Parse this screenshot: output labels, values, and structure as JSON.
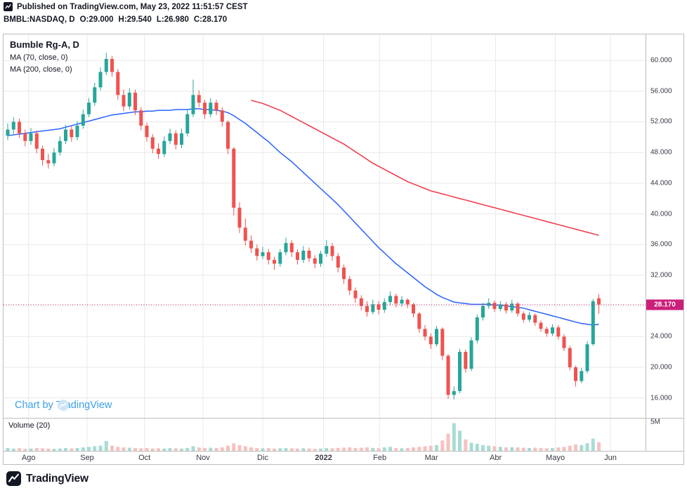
{
  "publish_bar": {
    "text": "Published on TradingView.com, May 23, 2022 11:51:57 CEST"
  },
  "symbol_bar": {
    "symbol": "BMBL:NASDAQ, D",
    "open": "O:29.000",
    "high": "H:29.540",
    "low": "L:26.980",
    "close": "C:28.170"
  },
  "legend": {
    "series_title": "Bumble Rg-A, D",
    "ma_fast_label": "MA (70, close, 0)",
    "ma_slow_label": "MA (200, close, 0)"
  },
  "watermark_text": "Chart by TradingView",
  "volume_panel_label": "Volume (20)",
  "volume_axis_label": "5M",
  "last_price_label": "28.170",
  "footer_brand": "TradingView",
  "colors": {
    "up": "#26a69a",
    "down": "#ef5350",
    "ma_fast": "#2962ff",
    "ma_slow": "#f23645",
    "price_line": "#cc1f7a",
    "volume_up": "#a8dcd4",
    "volume_down": "#f6c2c1",
    "grid": "#e8e8e8",
    "axis_text": "#363a45",
    "frame": "#bdbdbd",
    "watermark_blue": "#3aa0e8"
  },
  "chart_data": {
    "type": "candlestick",
    "title": "Bumble Rg-A, D (BMBL:NASDAQ)",
    "interval": "D",
    "header_ohlc": {
      "o": 29.0,
      "h": 29.54,
      "l": 26.98,
      "c": 28.17
    },
    "last_price": 28.17,
    "ylim": [
      13.4,
      63.4
    ],
    "price_ticks": [
      {
        "value": 60,
        "label": "60.000"
      },
      {
        "value": 56,
        "label": "56.000"
      },
      {
        "value": 52,
        "label": "52.000"
      },
      {
        "value": 48,
        "label": "48.000"
      },
      {
        "value": 44,
        "label": "44.000"
      },
      {
        "value": 40,
        "label": "40.000"
      },
      {
        "value": 36,
        "label": "36.000"
      },
      {
        "value": 32,
        "label": "32.000"
      },
      {
        "value": 28,
        "label": "28.000"
      },
      {
        "value": 24,
        "label": "24.000"
      },
      {
        "value": 20,
        "label": "20.000"
      },
      {
        "value": 16,
        "label": "16.000"
      }
    ],
    "month_ticks": [
      {
        "label": "Ago",
        "i": 3.6
      },
      {
        "label": "Sep",
        "i": 13.7
      },
      {
        "label": "Oct",
        "i": 23.6
      },
      {
        "label": "Nov",
        "i": 33.7
      },
      {
        "label": "Dic",
        "i": 44.0
      },
      {
        "label": "2022",
        "i": 54.5,
        "bold": true
      },
      {
        "label": "Feb",
        "i": 64.2
      },
      {
        "label": "Mar",
        "i": 73.1
      },
      {
        "label": "Abr",
        "i": 84.2
      },
      {
        "label": "Mayo",
        "i": 94.5
      },
      {
        "label": "Jun",
        "i": 104
      }
    ],
    "candles": [
      [
        50.2,
        51.8,
        49.6,
        51.0
      ],
      [
        51.0,
        52.6,
        50.4,
        52.0
      ],
      [
        52.0,
        52.4,
        49.9,
        50.5
      ],
      [
        50.5,
        51.0,
        48.8,
        49.5
      ],
      [
        49.5,
        51.2,
        49.0,
        50.5
      ],
      [
        50.5,
        50.9,
        47.9,
        48.5
      ],
      [
        48.5,
        48.9,
        46.3,
        47.0
      ],
      [
        47.0,
        47.8,
        45.9,
        46.6
      ],
      [
        46.6,
        48.6,
        46.2,
        48.0
      ],
      [
        48.0,
        50.1,
        47.6,
        49.5
      ],
      [
        49.5,
        51.6,
        49.1,
        51.0
      ],
      [
        51.0,
        51.5,
        49.4,
        50.0
      ],
      [
        50.0,
        52.1,
        49.6,
        51.5
      ],
      [
        51.5,
        53.6,
        51.1,
        53.0
      ],
      [
        53.0,
        55.1,
        52.6,
        54.5
      ],
      [
        54.5,
        57.1,
        54.1,
        56.5
      ],
      [
        56.5,
        59.1,
        56.1,
        58.5
      ],
      [
        58.5,
        61.0,
        58.1,
        60.2
      ],
      [
        60.2,
        60.6,
        57.9,
        58.5
      ],
      [
        58.5,
        58.9,
        54.9,
        55.5
      ],
      [
        55.5,
        56.2,
        53.4,
        54.0
      ],
      [
        54.0,
        56.4,
        53.6,
        55.8
      ],
      [
        55.8,
        56.2,
        52.9,
        53.5
      ],
      [
        53.5,
        53.9,
        50.9,
        51.5
      ],
      [
        51.5,
        51.9,
        49.4,
        50.0
      ],
      [
        50.0,
        50.4,
        47.9,
        48.5
      ],
      [
        48.5,
        49.2,
        47.2,
        47.8
      ],
      [
        47.8,
        50.1,
        47.4,
        49.5
      ],
      [
        49.5,
        51.1,
        49.1,
        50.5
      ],
      [
        50.5,
        50.9,
        48.4,
        49.0
      ],
      [
        49.0,
        51.1,
        48.6,
        50.5
      ],
      [
        50.5,
        53.6,
        50.1,
        53.0
      ],
      [
        53.0,
        57.5,
        52.6,
        55.5
      ],
      [
        55.5,
        56.1,
        53.9,
        54.5
      ],
      [
        54.5,
        54.9,
        52.4,
        53.0
      ],
      [
        53.0,
        55.1,
        52.6,
        54.5
      ],
      [
        54.5,
        54.9,
        52.9,
        53.5
      ],
      [
        53.5,
        53.9,
        51.4,
        52.0
      ],
      [
        52.0,
        52.2,
        47.8,
        48.5
      ],
      [
        48.5,
        48.7,
        39.8,
        40.8
      ],
      [
        40.8,
        41.5,
        37.5,
        38.2
      ],
      [
        38.2,
        39.4,
        35.9,
        36.5
      ],
      [
        36.5,
        37.2,
        34.9,
        35.5
      ],
      [
        35.5,
        36.0,
        33.9,
        34.5
      ],
      [
        34.5,
        35.7,
        34.1,
        35.0
      ],
      [
        35.0,
        35.4,
        33.4,
        34.0
      ],
      [
        34.0,
        34.4,
        32.7,
        33.5
      ],
      [
        33.5,
        35.4,
        33.1,
        35.0
      ],
      [
        35.0,
        36.9,
        34.6,
        36.2
      ],
      [
        36.2,
        36.6,
        34.4,
        35.0
      ],
      [
        35.0,
        35.4,
        33.4,
        34.0
      ],
      [
        34.0,
        35.8,
        33.6,
        35.2
      ],
      [
        35.2,
        35.6,
        33.7,
        34.2
      ],
      [
        34.2,
        34.6,
        32.9,
        33.5
      ],
      [
        33.5,
        35.2,
        33.1,
        34.8
      ],
      [
        34.8,
        36.6,
        34.4,
        35.8
      ],
      [
        35.8,
        36.2,
        33.9,
        34.5
      ],
      [
        34.5,
        34.9,
        32.4,
        33.0
      ],
      [
        33.0,
        33.4,
        30.9,
        31.5
      ],
      [
        31.5,
        31.9,
        29.4,
        30.0
      ],
      [
        30.0,
        30.4,
        28.4,
        29.0
      ],
      [
        29.0,
        29.4,
        27.4,
        28.0
      ],
      [
        28.0,
        28.6,
        26.6,
        27.2
      ],
      [
        27.2,
        28.8,
        26.9,
        28.2
      ],
      [
        28.2,
        28.6,
        26.9,
        27.5
      ],
      [
        27.5,
        29.0,
        27.1,
        28.5
      ],
      [
        28.5,
        29.9,
        28.1,
        29.3
      ],
      [
        29.3,
        29.6,
        27.8,
        28.3
      ],
      [
        28.3,
        29.3,
        27.9,
        28.8
      ],
      [
        28.8,
        29.0,
        27.7,
        28.2
      ],
      [
        28.2,
        28.4,
        26.5,
        27.0
      ],
      [
        27.0,
        27.2,
        24.5,
        25.0
      ],
      [
        25.0,
        25.5,
        23.5,
        24.0
      ],
      [
        24.0,
        24.4,
        22.4,
        23.0
      ],
      [
        23.0,
        25.4,
        22.7,
        25.0
      ],
      [
        25.0,
        25.2,
        20.9,
        21.5
      ],
      [
        21.5,
        21.7,
        15.9,
        16.4
      ],
      [
        16.4,
        17.5,
        15.8,
        16.9
      ],
      [
        16.9,
        22.4,
        16.6,
        22.0
      ],
      [
        22.0,
        22.3,
        19.3,
        19.8
      ],
      [
        19.8,
        23.9,
        19.5,
        23.5
      ],
      [
        23.5,
        26.9,
        23.1,
        26.5
      ],
      [
        26.5,
        28.4,
        26.1,
        28.0
      ],
      [
        28.0,
        29.0,
        27.6,
        28.4
      ],
      [
        28.4,
        28.7,
        27.2,
        27.6
      ],
      [
        27.6,
        28.6,
        27.3,
        28.2
      ],
      [
        28.2,
        28.5,
        27.0,
        27.4
      ],
      [
        27.4,
        28.8,
        27.1,
        28.3
      ],
      [
        28.3,
        28.5,
        26.6,
        27.0
      ],
      [
        27.0,
        27.3,
        25.8,
        26.2
      ],
      [
        26.2,
        27.2,
        25.9,
        26.8
      ],
      [
        26.8,
        27.0,
        25.4,
        25.8
      ],
      [
        25.8,
        26.1,
        24.6,
        25.0
      ],
      [
        25.0,
        25.3,
        24.0,
        24.4
      ],
      [
        24.4,
        25.6,
        24.1,
        25.2
      ],
      [
        25.2,
        25.5,
        23.6,
        24.0
      ],
      [
        24.0,
        24.3,
        22.1,
        22.5
      ],
      [
        22.5,
        22.8,
        19.6,
        20.0
      ],
      [
        20.0,
        20.2,
        17.5,
        18.2
      ],
      [
        18.2,
        19.9,
        17.9,
        19.5
      ],
      [
        19.5,
        23.4,
        19.2,
        23.0
      ],
      [
        23.0,
        28.9,
        22.8,
        28.6
      ],
      [
        29.0,
        29.54,
        26.98,
        28.17
      ]
    ],
    "ma70": [
      50.2,
      50.3,
      50.4,
      50.5,
      50.6,
      50.7,
      50.8,
      50.9,
      51.0,
      51.1,
      51.3,
      51.5,
      51.7,
      51.9,
      52.1,
      52.3,
      52.5,
      52.7,
      52.9,
      53.0,
      53.1,
      53.2,
      53.3,
      53.3,
      53.4,
      53.4,
      53.5,
      53.5,
      53.5,
      53.6,
      53.6,
      53.6,
      53.7,
      53.7,
      53.6,
      53.6,
      53.5,
      53.4,
      53.2,
      52.8,
      52.3,
      51.8,
      51.2,
      50.6,
      50.0,
      49.4,
      48.7,
      48.0,
      47.4,
      46.8,
      46.1,
      45.4,
      44.7,
      44.0,
      43.3,
      42.6,
      41.9,
      41.2,
      40.4,
      39.6,
      38.8,
      38.0,
      37.2,
      36.4,
      35.6,
      34.9,
      34.2,
      33.5,
      32.9,
      32.3,
      31.7,
      31.1,
      30.5,
      30.0,
      29.5,
      29.1,
      28.8,
      28.5,
      28.4,
      28.3,
      28.2,
      28.2,
      28.2,
      28.2,
      28.1,
      28.1,
      28.0,
      27.9,
      27.8,
      27.7,
      27.5,
      27.3,
      27.1,
      26.9,
      26.7,
      26.5,
      26.3,
      26.1,
      25.9,
      25.7,
      25.6,
      25.5,
      25.6
    ],
    "ma200": [
      null,
      null,
      null,
      null,
      null,
      null,
      null,
      null,
      null,
      null,
      null,
      null,
      null,
      null,
      null,
      null,
      null,
      null,
      null,
      null,
      null,
      null,
      null,
      null,
      null,
      null,
      null,
      null,
      null,
      null,
      null,
      null,
      null,
      null,
      null,
      null,
      null,
      null,
      null,
      null,
      null,
      null,
      54.8,
      54.6,
      54.4,
      54.1,
      53.8,
      53.5,
      53.1,
      52.7,
      52.3,
      51.9,
      51.5,
      51.1,
      50.7,
      50.3,
      49.9,
      49.5,
      49.1,
      48.6,
      48.1,
      47.6,
      47.1,
      46.6,
      46.2,
      45.8,
      45.4,
      45.0,
      44.6,
      44.2,
      43.9,
      43.6,
      43.3,
      43.0,
      42.8,
      42.6,
      42.4,
      42.2,
      42.0,
      41.8,
      41.6,
      41.4,
      41.2,
      41.0,
      40.8,
      40.6,
      40.4,
      40.2,
      40.0,
      39.8,
      39.6,
      39.4,
      39.2,
      39.0,
      38.8,
      38.6,
      38.4,
      38.2,
      38.0,
      37.8,
      37.6,
      37.4,
      37.2
    ],
    "volume_m": [
      0.5,
      0.4,
      0.45,
      0.35,
      0.4,
      0.5,
      0.45,
      0.4,
      0.35,
      0.4,
      0.5,
      0.45,
      0.5,
      0.6,
      0.7,
      0.8,
      0.9,
      1.7,
      0.9,
      0.7,
      0.6,
      0.55,
      0.5,
      0.45,
      0.5,
      0.4,
      0.45,
      0.4,
      0.5,
      0.45,
      0.4,
      0.5,
      0.8,
      0.6,
      0.5,
      0.55,
      0.5,
      0.6,
      0.9,
      1.3,
      1.0,
      0.8,
      0.6,
      0.5,
      0.45,
      0.5,
      0.4,
      0.45,
      0.5,
      0.45,
      0.4,
      0.45,
      0.4,
      0.35,
      0.4,
      0.5,
      0.45,
      0.5,
      0.55,
      0.6,
      0.5,
      0.55,
      0.6,
      0.5,
      0.45,
      0.6,
      0.7,
      0.5,
      0.45,
      0.5,
      0.6,
      0.7,
      0.8,
      0.9,
      1.0,
      1.8,
      3.0,
      4.8,
      3.5,
      2.0,
      1.4,
      1.2,
      1.0,
      0.9,
      0.8,
      0.7,
      0.6,
      0.65,
      0.6,
      0.55,
      0.5,
      0.55,
      0.5,
      0.45,
      0.5,
      0.6,
      0.7,
      0.9,
      1.1,
      1.0,
      1.3,
      2.1,
      1.5
    ],
    "volume_scale_max": 5.6,
    "volume_tick": {
      "value": 5,
      "label": "5M"
    }
  }
}
